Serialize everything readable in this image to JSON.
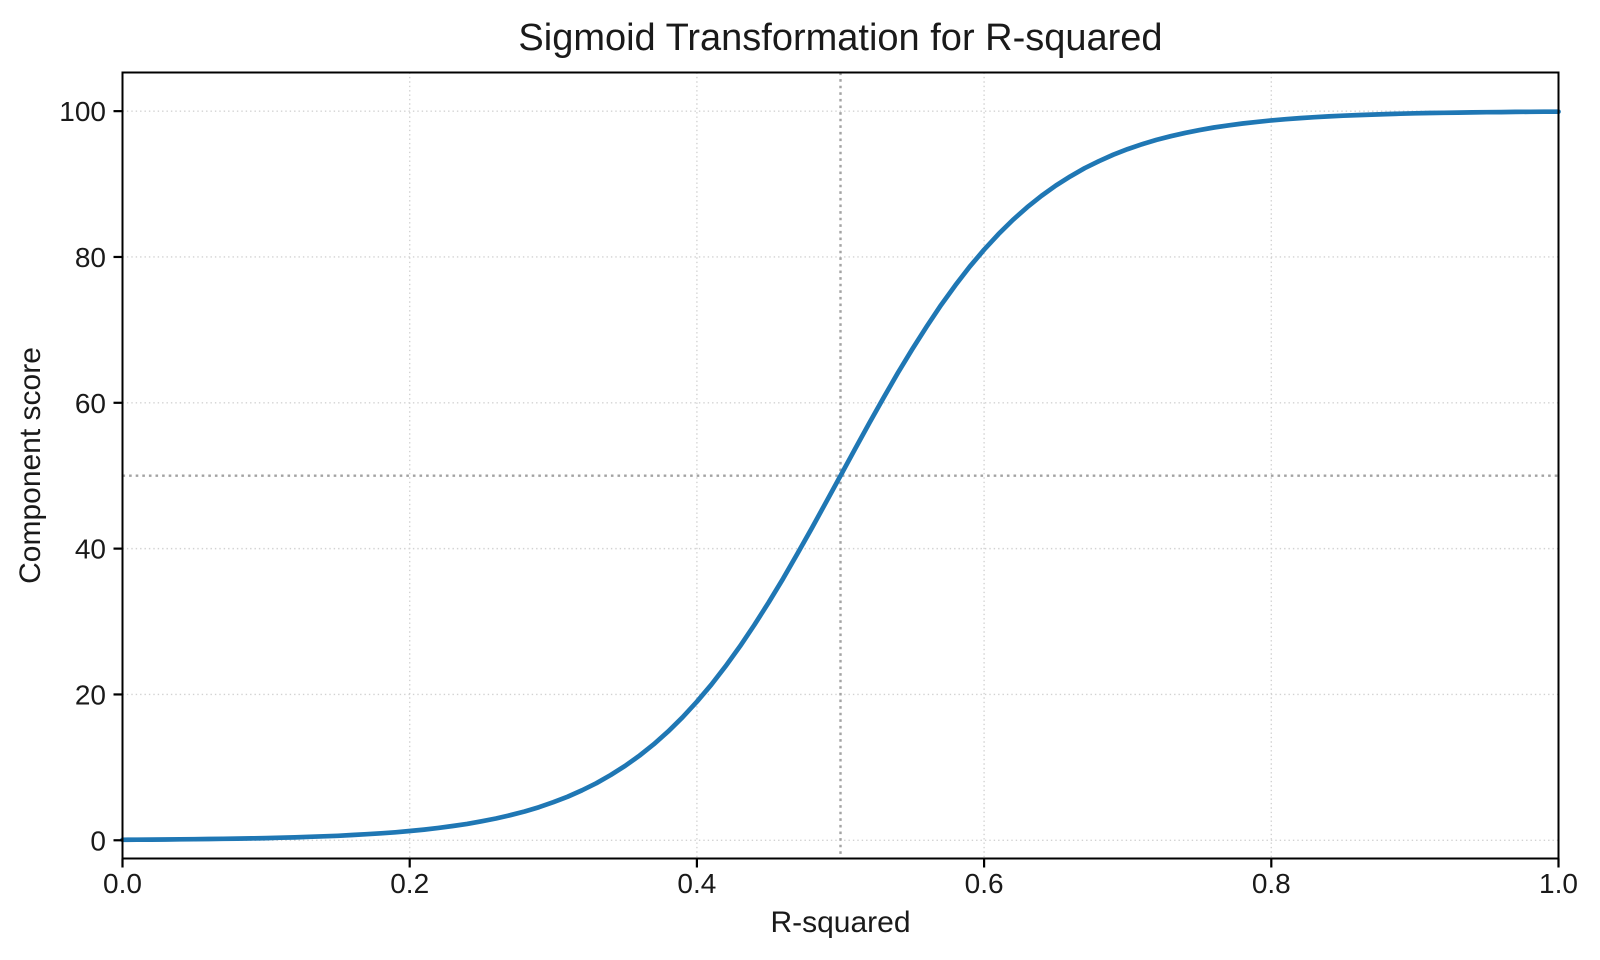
{
  "chart_data": {
    "type": "line",
    "title": "Sigmoid Transformation for R-squared",
    "xlabel": "R-squared",
    "ylabel": "Component score",
    "xlim": [
      0.0,
      1.0
    ],
    "ylim": [
      -2.5,
      105.3
    ],
    "x_ticks": [
      0.0,
      0.2,
      0.4,
      0.6,
      0.8,
      1.0
    ],
    "x_tick_labels": [
      "0.0",
      "0.2",
      "0.4",
      "0.6",
      "0.8",
      "1.0"
    ],
    "y_ticks": [
      0,
      20,
      40,
      60,
      80,
      100
    ],
    "y_tick_labels": [
      "0",
      "20",
      "40",
      "60",
      "80",
      "100"
    ],
    "grid": true,
    "grid_style": "dotted",
    "legend": "none",
    "reference_lines": [
      {
        "axis": "x",
        "value": 0.5,
        "style": "dotted"
      },
      {
        "axis": "y",
        "value": 50,
        "style": "dotted"
      }
    ],
    "colors": {
      "curve": "#1f77b4",
      "grid": "#d2d2d2",
      "reference": "#a3a3a3",
      "spine": "#000000",
      "text": "#1a1a1a",
      "background": "#ffffff"
    },
    "series": [
      {
        "name": "sigmoid",
        "color": "#1f77b4",
        "x": [
          0,
          0.01,
          0.02,
          0.03,
          0.04,
          0.05,
          0.06,
          0.07,
          0.08,
          0.09,
          0.1,
          0.11,
          0.12,
          0.13,
          0.14,
          0.15,
          0.16,
          0.17,
          0.18,
          0.19,
          0.2,
          0.21,
          0.22,
          0.23,
          0.24,
          0.25,
          0.26,
          0.27,
          0.28,
          0.29,
          0.3,
          0.31,
          0.32,
          0.33,
          0.34,
          0.35,
          0.36,
          0.37,
          0.38,
          0.39,
          0.4,
          0.41,
          0.42,
          0.43,
          0.44,
          0.45,
          0.46,
          0.47,
          0.48,
          0.49,
          0.5,
          0.51,
          0.52,
          0.53,
          0.54,
          0.55,
          0.56,
          0.57,
          0.58,
          0.59,
          0.6,
          0.61,
          0.62,
          0.63,
          0.64,
          0.65,
          0.66,
          0.67,
          0.68,
          0.69,
          0.7,
          0.71,
          0.72,
          0.73,
          0.74,
          0.75,
          0.76,
          0.77,
          0.78,
          0.79,
          0.8,
          0.81,
          0.82,
          0.83,
          0.84,
          0.85,
          0.86,
          0.87,
          0.88,
          0.89,
          0.9,
          0.91,
          0.92,
          0.93,
          0.94,
          0.95,
          0.96,
          0.97,
          0.98,
          0.99,
          1.0
        ],
        "y": [
          0.07,
          0.08,
          0.09,
          0.11,
          0.13,
          0.15,
          0.17,
          0.2,
          0.23,
          0.26,
          0.3,
          0.35,
          0.4,
          0.47,
          0.54,
          0.62,
          0.72,
          0.83,
          0.96,
          1.1,
          1.27,
          1.47,
          1.7,
          1.96,
          2.25,
          2.6,
          2.99,
          3.44,
          3.95,
          4.54,
          5.22,
          5.98,
          6.85,
          7.83,
          8.95,
          10.2,
          11.61,
          13.18,
          14.93,
          16.87,
          19.0,
          21.33,
          23.87,
          26.6,
          29.53,
          32.63,
          35.89,
          39.3,
          42.8,
          46.38,
          50.0,
          53.62,
          57.2,
          60.7,
          64.11,
          67.37,
          70.47,
          73.4,
          76.13,
          78.67,
          81.0,
          83.13,
          85.07,
          86.82,
          88.39,
          89.8,
          91.05,
          92.17,
          93.15,
          94.02,
          94.79,
          95.46,
          96.05,
          96.56,
          97.01,
          97.4,
          97.75,
          98.04,
          98.3,
          98.53,
          98.73,
          98.9,
          99.04,
          99.17,
          99.28,
          99.38,
          99.46,
          99.53,
          99.6,
          99.65,
          99.7,
          99.74,
          99.77,
          99.8,
          99.83,
          99.85,
          99.87,
          99.89,
          99.91,
          99.92,
          99.93
        ]
      }
    ]
  }
}
